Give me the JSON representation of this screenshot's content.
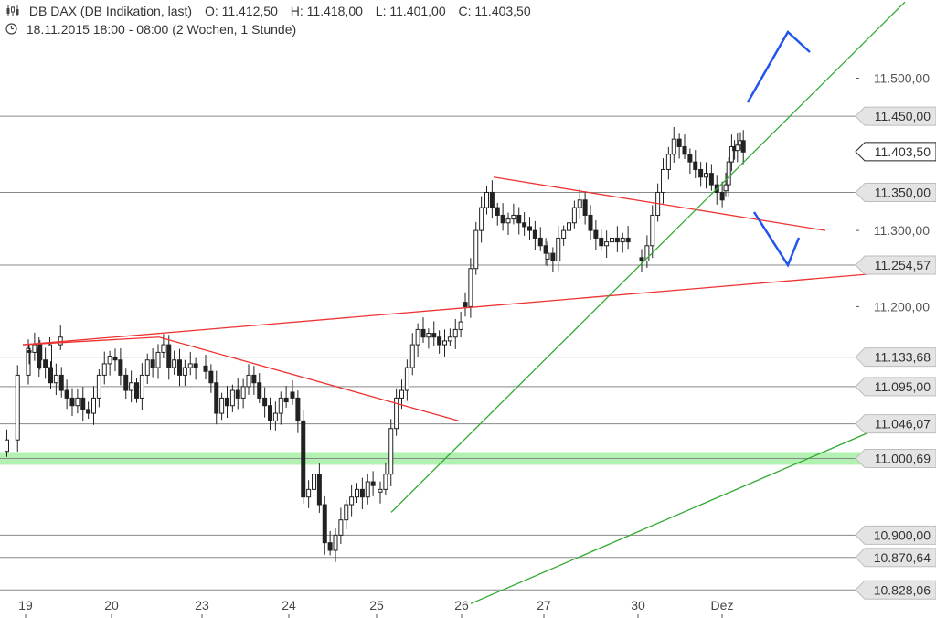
{
  "header": {
    "instrument": "DB DAX (DB Indikation, last)",
    "open": "O: 11.412,50",
    "high": "H: 11.418,00",
    "low": "L: 11.401,00",
    "close": "C: 11.403,50",
    "period": "18.11.2015 18:00 - 08:00 (2 Wochen, 1 Stunde)",
    "icons": {
      "chart_type": "candlestick-icon",
      "time": "clock-icon"
    }
  },
  "chart_data": {
    "type": "candlestick",
    "title": "DB DAX (DB Indikation, last)",
    "xlabel": "",
    "ylabel": "",
    "ylim": [
      10820,
      11545
    ],
    "grid": false,
    "x_ticks": [
      "19",
      "20",
      "23",
      "24",
      "25",
      "26",
      "27",
      "30",
      "Dez"
    ],
    "y_ticks": [
      {
        "value": 11500,
        "label": "11.500,00"
      },
      {
        "value": 11300,
        "label": "11.300,00"
      },
      {
        "value": 11200,
        "label": "11.200,00"
      }
    ],
    "price_levels": [
      {
        "value": 11450.0,
        "label": "11.450,00",
        "line": true
      },
      {
        "value": 11403.5,
        "label": "11.403,50",
        "line": false,
        "current": true
      },
      {
        "value": 11350.0,
        "label": "11.350,00",
        "line": true
      },
      {
        "value": 11254.57,
        "label": "11.254,57",
        "line": true
      },
      {
        "value": 11133.68,
        "label": "11.133,68",
        "line": true
      },
      {
        "value": 11095.0,
        "label": "11.095,00",
        "line": true
      },
      {
        "value": 11046.07,
        "label": "11.046,07",
        "line": true
      },
      {
        "value": 11000.69,
        "label": "11.000,69",
        "line": true,
        "highlight": true
      },
      {
        "value": 10900.0,
        "label": "10.900,00",
        "line": true
      },
      {
        "value": 10870.64,
        "label": "10.870,64",
        "line": true
      },
      {
        "value": 10828.06,
        "label": "10.828,06",
        "line": true
      }
    ],
    "colors": {
      "candle": "#222222",
      "level_line": "#888888",
      "highlight_zone": "#aaf0aa",
      "red_trend": "#ee3333",
      "green_trend": "#33aa33",
      "blue_arrow": "#2255ee"
    },
    "day_sessions": [
      {
        "day": "18",
        "prices": [
          10990,
          11010,
          11025,
          11110,
          11145,
          11120,
          11150,
          11160
        ]
      },
      {
        "day": "19",
        "prices": [
          11140,
          11150,
          11130,
          11120,
          11100,
          11110,
          11090,
          11080,
          11070,
          11080,
          11065,
          11060,
          11080,
          11110,
          11125,
          11135
        ]
      },
      {
        "day": "20",
        "prices": [
          11130,
          11110,
          11090,
          11100,
          11080,
          11110,
          11130,
          11120,
          11140,
          11150,
          11120,
          11130,
          11110,
          11120,
          11125,
          11120
        ]
      },
      {
        "day": "23",
        "prices": [
          11115,
          11100,
          11060,
          11080,
          11070,
          11090,
          11080,
          11095,
          11110,
          11100,
          11080,
          11070,
          11050,
          11060,
          11080,
          11075
        ]
      },
      {
        "day": "24",
        "prices": [
          11080,
          11050,
          10950,
          10960,
          10980,
          10940,
          10890,
          10880,
          10900,
          10920,
          10940,
          10950,
          10960,
          10950,
          10970,
          10965
        ]
      },
      {
        "day": "25",
        "prices": [
          10960,
          10980,
          11040,
          11080,
          11090,
          11120,
          11150,
          11170,
          11160,
          11165,
          11160,
          11150,
          11155,
          11160,
          11170,
          11180
        ]
      },
      {
        "day": "26",
        "prices": [
          11200,
          11250,
          11300,
          11330,
          11350,
          11330,
          11320,
          11310,
          11315,
          11320,
          11310,
          11305,
          11300,
          11290,
          11280,
          11270
        ]
      },
      {
        "day": "27",
        "prices": [
          11270,
          11260,
          11290,
          11300,
          11310,
          11330,
          11340,
          11320,
          11300,
          11290,
          11280,
          11285,
          11290,
          11285,
          11290,
          11285
        ]
      },
      {
        "day": "30",
        "prices": [
          11260,
          11280,
          11320,
          11350,
          11380,
          11400,
          11420,
          11410,
          11400,
          11390,
          11380,
          11370,
          11375,
          11360,
          11350,
          11340
        ]
      },
      {
        "day": "Dez",
        "prices": [
          11360,
          11390,
          11410,
          11405,
          11412,
          11418,
          11403
        ]
      }
    ],
    "trendlines": [
      {
        "color": "red",
        "from": {
          "session": "19",
          "price": 11150
        },
        "to": {
          "session": "20",
          "price": 11160
        }
      },
      {
        "color": "red",
        "from": {
          "session": "20",
          "price": 11160
        },
        "to": {
          "session": "25",
          "price": 11050
        }
      },
      {
        "color": "red",
        "from": {
          "session": "19",
          "price": 11150
        },
        "to": {
          "session": "Dez",
          "price": 11250
        }
      },
      {
        "color": "red",
        "from": {
          "session": "26",
          "price": 11370
        },
        "to": {
          "session": "Dez",
          "price": 11300
        }
      },
      {
        "color": "green",
        "from": {
          "session": "25",
          "price": 10930
        },
        "to": {
          "session": "Dez",
          "price": 11600
        }
      },
      {
        "color": "green",
        "from": {
          "session": "26",
          "price": 10810
        },
        "to": {
          "session": "Dez",
          "price": 11050
        }
      }
    ]
  }
}
